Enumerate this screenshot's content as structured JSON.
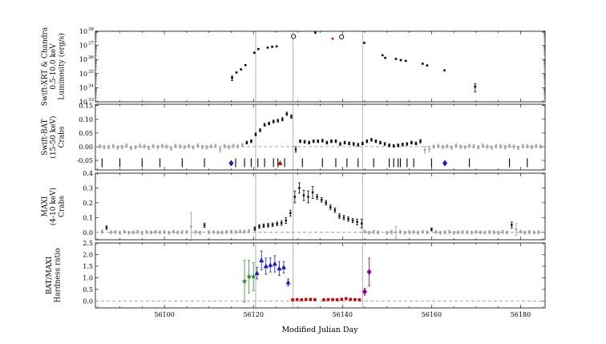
{
  "chart_data": [
    {
      "panel": "luminosity",
      "type": "scatter",
      "ylabel": [
        "Swift-XRT & Chandra",
        "0.5-10.0 keV",
        "Luminosity (erg/s)"
      ],
      "yscale": "log",
      "ylim": [
        1e+33,
        1e+38
      ],
      "yticks": [
        {
          "v": 1e+33,
          "base": "10",
          "exp": "33"
        },
        {
          "v": 1e+34,
          "base": "10",
          "exp": "34"
        },
        {
          "v": 1e+35,
          "base": "10",
          "exp": "35"
        },
        {
          "v": 1e+36,
          "base": "10",
          "exp": "36"
        },
        {
          "v": 1e+37,
          "base": "10",
          "exp": "37"
        },
        {
          "v": 1e+38,
          "base": "10",
          "exp": "38"
        }
      ],
      "series": [
        {
          "kind": "xrt",
          "color": "#000000",
          "x": [
            56115.2,
            56116.2,
            56117.2,
            56118.2,
            56120.2,
            56121.1,
            56123.2,
            56124.2,
            56125.2,
            56133.9,
            56144.9,
            56149.0,
            56149.6,
            56152.0,
            56153.1,
            56154.2,
            56158.0,
            56159.0,
            56162.9,
            56169.8
          ],
          "y": [
            5e+34,
            1.2e+35,
            2e+35,
            4e+35,
            3e+36,
            5.5e+36,
            7e+36,
            8e+36,
            8.5e+36,
            8e+37,
            1.5e+37,
            2e+36,
            1.3e+36,
            1.1e+36,
            9e+35,
            8e+35,
            5e+35,
            3.8e+35,
            1.7e+35,
            1.2e+34
          ],
          "err": [
            1.8e+34,
            0,
            0,
            0,
            0,
            0,
            0,
            0,
            0,
            0,
            0,
            0,
            0,
            0,
            0,
            0,
            0,
            0,
            0,
            7e+33
          ]
        },
        {
          "kind": "chandra-open",
          "color": "#000000",
          "x": [
            56129.0,
            56139.8
          ],
          "y": [
            4.3e+37,
            4e+37
          ],
          "err": [
            0,
            0
          ]
        },
        {
          "kind": "red",
          "color": "#cc0000",
          "x": [
            56137.8
          ],
          "y": [
            3e+37
          ],
          "err": [
            0
          ]
        }
      ]
    },
    {
      "panel": "bat",
      "type": "scatter",
      "ylabel": [
        "Swift-BAT",
        "(15-50 keV)",
        "Crabs"
      ],
      "ylim": [
        -0.085,
        0.155
      ],
      "yticks": [
        {
          "v": -0.05,
          "label": "-0.05"
        },
        {
          "v": 0.0,
          "label": "0.00"
        },
        {
          "v": 0.05,
          "label": "0.05"
        },
        {
          "v": 0.1,
          "label": "0.10"
        },
        {
          "v": 0.15,
          "label": "0.15"
        }
      ],
      "bat_x_gray": [
        56085.5,
        56086.5,
        56087.5,
        56088.5,
        56089.5,
        56090.5,
        56091.5,
        56092.5,
        56093.5,
        56094.5,
        56095.5,
        56096.5,
        56097.5,
        56098.5,
        56099.5,
        56100.5,
        56101.5,
        56102.5,
        56103.5,
        56104.5,
        56105.5,
        56106.5,
        56107.5,
        56108.5,
        56109.5,
        56110.5,
        56111.5,
        56112.5,
        56113.5,
        56114.5,
        56115.5,
        56116.5,
        56117.5
      ],
      "bat_y_gray": [
        0.001,
        -0.002,
        -0.001,
        0.002,
        -0.003,
        -0.001,
        0.004,
        -0.005,
        -0.002,
        0.003,
        0.001,
        -0.004,
        0.002,
        -0.001,
        0.003,
        0.0,
        -0.006,
        0.003,
        0.001,
        -0.002,
        0.002,
        -0.003,
        0.004,
        -0.001,
        -0.002,
        0.001,
        0.003,
        -0.01,
        0.002,
        -0.001,
        0.003,
        0.002,
        0.006
      ],
      "bat_err_gray": [
        0.006,
        0.006,
        0.006,
        0.006,
        0.006,
        0.006,
        0.006,
        0.006,
        0.006,
        0.006,
        0.006,
        0.006,
        0.006,
        0.006,
        0.006,
        0.006,
        0.006,
        0.006,
        0.006,
        0.006,
        0.006,
        0.006,
        0.006,
        0.006,
        0.006,
        0.006,
        0.006,
        0.009,
        0.006,
        0.006,
        0.006,
        0.006,
        0.006
      ],
      "bat_x_black": [
        56118.5,
        56119.5,
        56120.5,
        56121.5,
        56122.5,
        56123.5,
        56124.5,
        56125.5,
        56126.5,
        56127.5,
        56128.5,
        56129.5,
        56130.5,
        56131.5,
        56132.5,
        56133.5,
        56134.5,
        56135.5,
        56136.5,
        56137.5,
        56138.5,
        56139.5,
        56140.5,
        56141.5,
        56142.5,
        56143.5,
        56144.5,
        56145.5,
        56146.5,
        56147.5,
        56148.5,
        56149.5,
        56150.5,
        56151.5,
        56152.5,
        56153.5,
        56154.5,
        56155.5,
        56156.5,
        56157.5
      ],
      "bat_y_black": [
        0.015,
        0.02,
        0.045,
        0.06,
        0.08,
        0.085,
        0.092,
        0.095,
        0.1,
        0.12,
        0.11,
        -0.01,
        0.02,
        0.018,
        0.015,
        0.02,
        0.02,
        0.022,
        0.015,
        0.02,
        0.02,
        0.01,
        0.015,
        0.012,
        0.01,
        0.007,
        0.012,
        0.02,
        0.025,
        0.02,
        0.015,
        0.01,
        0.005,
        0.003,
        0.005,
        0.008,
        0.01,
        0.015,
        0.012,
        0.02
      ],
      "bat_err_black": [
        0.005,
        0.005,
        0.005,
        0.005,
        0.005,
        0.005,
        0.005,
        0.005,
        0.006,
        0.006,
        0.006,
        0.01,
        0.005,
        0.005,
        0.005,
        0.005,
        0.005,
        0.005,
        0.005,
        0.005,
        0.005,
        0.005,
        0.005,
        0.005,
        0.005,
        0.005,
        0.005,
        0.005,
        0.005,
        0.005,
        0.005,
        0.005,
        0.005,
        0.005,
        0.005,
        0.005,
        0.005,
        0.005,
        0.005,
        0.006
      ],
      "bat_x_gray2": [
        56158.5,
        56159.5,
        56160.5,
        56161.5,
        56162.5,
        56163.5,
        56164.5,
        56165.5,
        56166.5,
        56167.5,
        56168.5,
        56169.5,
        56170.5,
        56171.5,
        56172.5,
        56173.5,
        56174.5,
        56175.5,
        56176.5,
        56177.5,
        56178.5,
        56179.5,
        56180.5,
        56181.5,
        56182.5,
        56183.5,
        56184.5
      ],
      "bat_y_gray2": [
        -0.012,
        -0.008,
        0.0,
        0.003,
        -0.001,
        0.002,
        -0.003,
        0.004,
        0.0,
        -0.002,
        0.003,
        0.001,
        -0.002,
        0.004,
        0.0,
        -0.003,
        0.002,
        0.001,
        -0.002,
        0.003,
        0.0,
        -0.004,
        0.002,
        0.001,
        -0.001,
        0.003,
        0.0
      ],
      "bat_err_gray2": [
        0.012,
        0.01,
        0.006,
        0.006,
        0.006,
        0.006,
        0.006,
        0.006,
        0.006,
        0.006,
        0.006,
        0.006,
        0.006,
        0.006,
        0.006,
        0.006,
        0.006,
        0.006,
        0.006,
        0.006,
        0.006,
        0.006,
        0.006,
        0.006,
        0.006,
        0.006,
        0.006
      ],
      "obs_tick_x": [
        56086,
        56090,
        56095,
        56099,
        56104,
        56109,
        56116,
        56118,
        56119.5,
        56121,
        56122.5,
        56124.5,
        56125.5,
        56127,
        56131,
        56135.5,
        56138.5,
        56141,
        56143.5,
        56147,
        56150.5,
        56151.5,
        56152.5,
        56153,
        56154.5,
        56156,
        56160,
        56168.5,
        56177.5,
        56181.5
      ],
      "obs_tick_y": -0.06,
      "markers": [
        {
          "x": 56115.0,
          "y": -0.06,
          "shape": "diamond",
          "color": "#1a1acc"
        },
        {
          "x": 56126.0,
          "y": -0.06,
          "shape": "triangle",
          "color": "#cc0000"
        },
        {
          "x": 56163.0,
          "y": -0.06,
          "shape": "diamond",
          "color": "#1a1acc"
        }
      ]
    },
    {
      "panel": "maxi",
      "type": "scatter",
      "ylabel": [
        "MAXI",
        "(4-10 keV)",
        "Crabs"
      ],
      "ylim": [
        -0.05,
        0.4
      ],
      "yticks": [
        {
          "v": 0.0,
          "label": "0.0"
        },
        {
          "v": 0.1,
          "label": "0.1"
        },
        {
          "v": 0.2,
          "label": "0.2"
        },
        {
          "v": 0.3,
          "label": "0.3"
        },
        {
          "v": 0.4,
          "label": "0.4"
        }
      ],
      "maxi_x_gray": [
        56086,
        56088,
        56089,
        56090,
        56091,
        56092,
        56093,
        56094,
        56095,
        56096,
        56097,
        56098,
        56099,
        56100,
        56101,
        56102,
        56103,
        56104,
        56105,
        56106,
        56107,
        56108,
        56110,
        56111,
        56112,
        56113,
        56114,
        56115,
        56116,
        56117,
        56118,
        56119
      ],
      "maxi_y_gray": [
        0.005,
        0.0,
        0.002,
        -0.003,
        0.004,
        -0.002,
        0.001,
        0.003,
        -0.004,
        0.002,
        -0.001,
        0.003,
        0.0,
        0.002,
        -0.002,
        0.004,
        -0.001,
        0.001,
        0.003,
        0.04,
        0.002,
        -0.003,
        0.001,
        0.002,
        0.0,
        -0.001,
        0.003,
        0.004,
        0.002,
        0.006,
        0.005,
        0.008
      ],
      "maxi_err_gray": [
        0.01,
        0.01,
        0.01,
        0.01,
        0.01,
        0.01,
        0.01,
        0.01,
        0.01,
        0.01,
        0.01,
        0.01,
        0.01,
        0.01,
        0.01,
        0.01,
        0.01,
        0.01,
        0.01,
        0.095,
        0.01,
        0.01,
        0.01,
        0.01,
        0.01,
        0.01,
        0.01,
        0.01,
        0.01,
        0.01,
        0.01,
        0.01
      ],
      "maxi_x_black": [
        56087,
        56109,
        56120.3,
        56121.3,
        56122.3,
        56123.3,
        56124.3,
        56125.3,
        56126.3,
        56127.3,
        56128.3,
        56129.3,
        56130.3,
        56131.3,
        56132.3,
        56133.3,
        56134.3,
        56135.3,
        56136.3,
        56137.3,
        56138.3,
        56139.3,
        56140.3,
        56141.3,
        56142.3,
        56143.3,
        56144.3,
        56160,
        56178
      ],
      "maxi_y_black": [
        0.032,
        0.048,
        0.025,
        0.04,
        0.045,
        0.048,
        0.052,
        0.058,
        0.063,
        0.08,
        0.13,
        0.24,
        0.3,
        0.25,
        0.24,
        0.27,
        0.24,
        0.22,
        0.2,
        0.17,
        0.15,
        0.11,
        0.1,
        0.09,
        0.08,
        0.07,
        0.06,
        0.02,
        0.05
      ],
      "maxi_err_black": [
        0.012,
        0.015,
        0.012,
        0.012,
        0.012,
        0.012,
        0.012,
        0.012,
        0.015,
        0.02,
        0.02,
        0.04,
        0.035,
        0.035,
        0.04,
        0.04,
        0.015,
        0.015,
        0.015,
        0.015,
        0.015,
        0.015,
        0.015,
        0.015,
        0.015,
        0.02,
        0.03,
        0.01,
        0.02
      ],
      "maxi_x_gray2": [
        56145,
        56146,
        56147,
        56148,
        56150,
        56151,
        56152,
        56153,
        56154,
        56155,
        56156,
        56157,
        56158,
        56159,
        56161,
        56162,
        56163,
        56164,
        56165,
        56166,
        56167,
        56168,
        56169,
        56170,
        56171,
        56172,
        56173,
        56174,
        56175,
        56176,
        56177,
        56179,
        56180,
        56181,
        56182,
        56183,
        56184
      ],
      "maxi_y_gray2": [
        0.005,
        -0.002,
        0.003,
        0.0,
        -0.003,
        0.002,
        0.0,
        0.003,
        -0.002,
        0.001,
        0.002,
        -0.001,
        0.004,
        0.0,
        0.002,
        -0.002,
        0.001,
        0.003,
        -0.003,
        0.0,
        0.002,
        0.001,
        -0.002,
        0.003,
        0.0,
        -0.001,
        0.002,
        0.001,
        -0.003,
        0.002,
        0.0,
        0.02,
        0.005,
        -0.002,
        0.003,
        0.0,
        0.001
      ],
      "maxi_err_gray2": [
        0.01,
        0.01,
        0.01,
        0.01,
        0.01,
        0.01,
        0.04,
        0.01,
        0.01,
        0.01,
        0.01,
        0.01,
        0.01,
        0.01,
        0.01,
        0.01,
        0.01,
        0.01,
        0.01,
        0.01,
        0.01,
        0.01,
        0.01,
        0.01,
        0.01,
        0.01,
        0.01,
        0.01,
        0.01,
        0.01,
        0.01,
        0.04,
        0.01,
        0.01,
        0.01,
        0.01,
        0.01
      ]
    },
    {
      "panel": "hardness",
      "type": "scatter",
      "ylabel": [
        "BAT/MAXI",
        "Hardness ratio"
      ],
      "xlabel": "Modified Julian Day",
      "ylim": [
        -0.3,
        2.5
      ],
      "yticks": [
        {
          "v": 0.0,
          "label": "0.0"
        },
        {
          "v": 0.5,
          "label": "0.5"
        },
        {
          "v": 1.0,
          "label": "1.0"
        },
        {
          "v": 1.5,
          "label": "1.5"
        },
        {
          "v": 2.0,
          "label": "2.0"
        },
        {
          "v": 2.5,
          "label": "2.5"
        }
      ],
      "series": [
        {
          "kind": "green-star",
          "color": "#2e8b2e",
          "x": [
            56118.0,
            56119.0,
            56120.0
          ],
          "y": [
            0.85,
            1.05,
            1.05
          ],
          "err": [
            0.9,
            0.7,
            0.6
          ]
        },
        {
          "kind": "blue-triangle",
          "color": "#1a1acc",
          "x": [
            56120.8,
            56121.8,
            56122.8,
            56123.8,
            56124.8,
            56125.8,
            56126.8,
            56127.8
          ],
          "y": [
            1.2,
            1.75,
            1.5,
            1.55,
            1.6,
            1.4,
            1.45,
            0.8
          ],
          "err": [
            0.25,
            0.4,
            0.35,
            0.3,
            0.35,
            0.3,
            0.25,
            0.15
          ]
        },
        {
          "kind": "red-square",
          "color": "#cc0000",
          "x": [
            56128.8,
            56129.8,
            56130.8,
            56131.8,
            56132.8,
            56133.8,
            56135.8,
            56136.8,
            56137.8,
            56138.8,
            56139.8,
            56140.8,
            56141.8,
            56142.8,
            56143.8
          ],
          "y": [
            0.05,
            0.06,
            0.05,
            0.07,
            0.07,
            0.06,
            0.05,
            0.06,
            0.06,
            0.05,
            0.07,
            0.1,
            0.07,
            0.06,
            0.05
          ],
          "err": [
            0,
            0,
            0,
            0,
            0,
            0,
            0,
            0,
            0,
            0,
            0,
            0,
            0,
            0,
            0
          ]
        },
        {
          "kind": "purple-diamond",
          "color": "#990099",
          "x": [
            56145.0,
            56146.0
          ],
          "y": [
            0.4,
            1.25
          ],
          "err": [
            0.15,
            0.6
          ]
        }
      ]
    }
  ],
  "shared_x": {
    "xlim": [
      56084.5,
      56185.5
    ],
    "xticks": [
      {
        "v": 56100,
        "label": "56100"
      },
      {
        "v": 56120,
        "label": "56120"
      },
      {
        "v": 56140,
        "label": "56140"
      },
      {
        "v": 56160,
        "label": "56160"
      },
      {
        "v": 56180,
        "label": "56180"
      }
    ],
    "vlines": [
      56120.5,
      56128.9,
      56144.5
    ],
    "vline_color": "#b0b0b0",
    "zero_line_style": "dashed"
  }
}
